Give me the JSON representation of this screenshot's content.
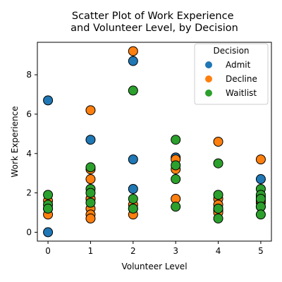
{
  "chart_data": {
    "type": "scatter",
    "title": "Scatter Plot of Work Experience\nand Volunteer Level, by Decision",
    "xlabel": "Volunteer Level",
    "ylabel": "Work Experience",
    "xlim": [
      -0.25,
      5.25
    ],
    "ylim": [
      -0.45,
      9.65
    ],
    "xticks": [
      0,
      1,
      2,
      3,
      4,
      5
    ],
    "yticks": [
      0,
      2,
      4,
      6,
      8
    ],
    "grid": false,
    "legend": {
      "title": "Decision",
      "placement": "top-right"
    },
    "series": [
      {
        "name": "Admit",
        "color": "#1f77b4",
        "points": [
          [
            0,
            6.7
          ],
          [
            0,
            0.0
          ],
          [
            1,
            4.7
          ],
          [
            2,
            8.7
          ],
          [
            2,
            3.7
          ],
          [
            2,
            2.2
          ],
          [
            3,
            3.8
          ],
          [
            5,
            2.7
          ],
          [
            5,
            1.5
          ],
          [
            4,
            1.1
          ],
          [
            1,
            1.7
          ]
        ]
      },
      {
        "name": "Decline",
        "color": "#ff7f0e",
        "points": [
          [
            0,
            1.6
          ],
          [
            0,
            1.2
          ],
          [
            0,
            0.9
          ],
          [
            1,
            6.2
          ],
          [
            1,
            3.2
          ],
          [
            1,
            2.7
          ],
          [
            1,
            1.7
          ],
          [
            1,
            1.2
          ],
          [
            1,
            0.9
          ],
          [
            1,
            0.7
          ],
          [
            2,
            9.2
          ],
          [
            2,
            1.4
          ],
          [
            2,
            1.2
          ],
          [
            2,
            0.9
          ],
          [
            3,
            3.7
          ],
          [
            3,
            3.2
          ],
          [
            3,
            1.7
          ],
          [
            4,
            4.6
          ],
          [
            4,
            1.7
          ],
          [
            4,
            1.4
          ],
          [
            4,
            1.2
          ],
          [
            4,
            1.0
          ],
          [
            5,
            3.7
          ],
          [
            5,
            1.8
          ],
          [
            5,
            1.6
          ],
          [
            5,
            1.3
          ]
        ]
      },
      {
        "name": "Waitlist",
        "color": "#2ca02c",
        "points": [
          [
            0,
            1.9
          ],
          [
            0,
            1.4
          ],
          [
            0,
            1.2
          ],
          [
            1,
            3.3
          ],
          [
            1,
            2.2
          ],
          [
            1,
            2.0
          ],
          [
            1,
            1.5
          ],
          [
            2,
            7.2
          ],
          [
            2,
            1.7
          ],
          [
            2,
            1.2
          ],
          [
            3,
            4.7
          ],
          [
            3,
            3.4
          ],
          [
            3,
            2.7
          ],
          [
            3,
            1.3
          ],
          [
            4,
            3.5
          ],
          [
            4,
            1.9
          ],
          [
            4,
            1.2
          ],
          [
            4,
            0.7
          ],
          [
            5,
            2.2
          ],
          [
            5,
            1.9
          ],
          [
            5,
            1.7
          ],
          [
            5,
            1.3
          ],
          [
            5,
            0.9
          ]
        ]
      }
    ]
  }
}
